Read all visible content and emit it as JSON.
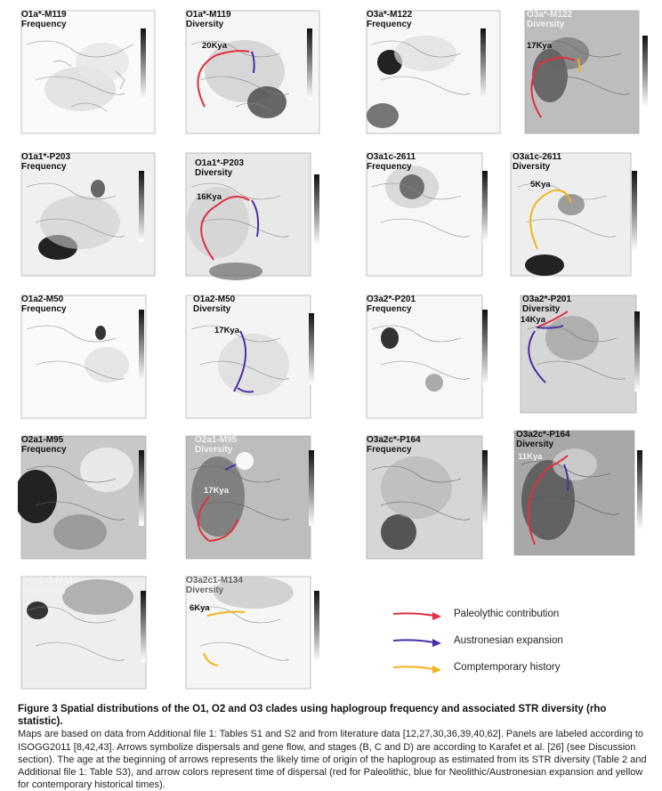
{
  "panels": [
    {
      "id": "p1",
      "title": "O1a*-M119\nFrequency",
      "tag": ""
    },
    {
      "id": "p2",
      "title": "O1a*-M119\nDiversity",
      "tag": "20Kya"
    },
    {
      "id": "p3",
      "title": "O3a*-M122\nFrequency",
      "tag": ""
    },
    {
      "id": "p4",
      "title": "O3a*-M122\nDiversity",
      "tag": "17Kya"
    },
    {
      "id": "p5",
      "title": "O1a1*-P203\nFrequency",
      "tag": ""
    },
    {
      "id": "p6",
      "title": "O1a1*-P203\nDiversity",
      "tag": "16Kya"
    },
    {
      "id": "p7",
      "title": "O3a1c-2611\nFrequency",
      "tag": ""
    },
    {
      "id": "p8",
      "title": "O3a1c-2611\nDiversity",
      "tag": "5Kya"
    },
    {
      "id": "p9",
      "title": "O1a2-M50\nFrequency",
      "tag": ""
    },
    {
      "id": "p10",
      "title": "O1a2-M50\nDiversity",
      "tag": "17Kya"
    },
    {
      "id": "p11",
      "title": "O3a2*-P201\nFrequency",
      "tag": ""
    },
    {
      "id": "p12",
      "title": "O3a2*-P201\nDiversity",
      "tag": "14Kya"
    },
    {
      "id": "p13",
      "title": "O2a1-M95\nFrequency",
      "tag": ""
    },
    {
      "id": "p14",
      "title": "O2a1-M95\nDiversity",
      "tag": "17Kya"
    },
    {
      "id": "p15",
      "title": "O3a2c*-P164\nFrequency",
      "tag": ""
    },
    {
      "id": "p16",
      "title": "O3a2c*-P164\nDiversity",
      "tag": "11Kya"
    },
    {
      "id": "p17",
      "title": "O3a2c1-M134\nFrequency",
      "tag": ""
    },
    {
      "id": "p18",
      "title": "O3a2c1-M134\nDiversity",
      "tag": "6Kya"
    }
  ],
  "legend": {
    "items": [
      {
        "label": "Paleolythic contribution",
        "color": "#e0303e"
      },
      {
        "label": "Austronesian expansion",
        "color": "#4b2fa8"
      },
      {
        "label": "Comptemporary history",
        "color": "#f0b41c"
      }
    ]
  },
  "caption": {
    "title": "Figure 3 Spatial distributions of the O1, O2 and O3 clades using haplogroup frequency and associated STR diversity (rho statistic).",
    "body": "Maps are based on data from Additional file 1: Tables S1 and S2 and from literature data [12,27,30,36,39,40,62]. Panels are labeled according to ISOGG2011 [8,42,43]. Arrows symbolize dispersals and gene flow, and stages (B, C and D) are according to Karafet et al. [26] (see Discussion section). The age at the beginning of arrows represents the likely time of origin of the haplogroup as estimated from its STR diversity (Table 2 and Additional file 1: Table S3), and arrow colors represent time of dispersal (red for Paleolithic, blue for Neolithic/Austronesian expansion and yellow for contemporary historical times)."
  },
  "colors": {
    "red": "#e0303e",
    "blue": "#4b2fa8",
    "yellow": "#f0b41c"
  }
}
